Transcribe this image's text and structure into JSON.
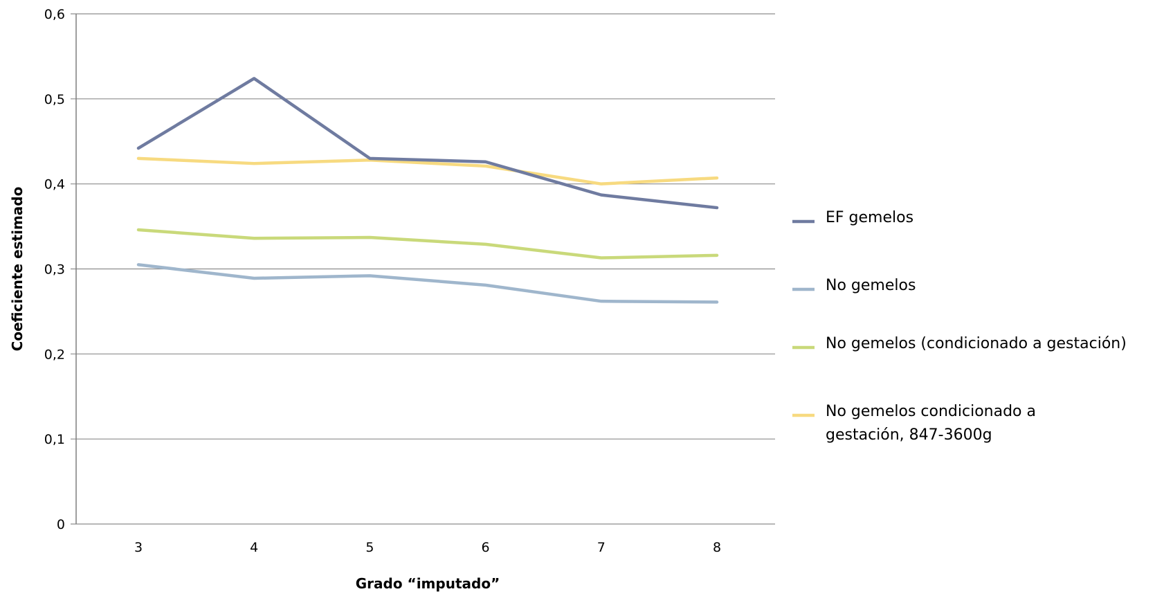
{
  "chart_data": {
    "type": "line",
    "title": "",
    "xlabel": "Grado “imputado”",
    "ylabel": "Coeficiente estimado",
    "x": [
      3,
      4,
      5,
      6,
      7,
      8
    ],
    "x_tick_labels": [
      "3",
      "4",
      "5",
      "6",
      "7",
      "8"
    ],
    "ylim": [
      0,
      0.6
    ],
    "y_ticks": [
      0,
      0.1,
      0.2,
      0.3,
      0.4,
      0.5,
      0.6
    ],
    "y_tick_labels": [
      "0",
      "0,1",
      "0,2",
      "0,3",
      "0,4",
      "0,5",
      "0,6"
    ],
    "grid": "horizontal",
    "legend_position": "right",
    "series": [
      {
        "name": "EF gemelos",
        "color": "#6f7ba0",
        "values": [
          0.442,
          0.524,
          0.43,
          0.426,
          0.387,
          0.372
        ]
      },
      {
        "name": "No gemelos",
        "color": "#9fb6cc",
        "values": [
          0.305,
          0.289,
          0.292,
          0.281,
          0.262,
          0.261
        ]
      },
      {
        "name": "No gemelos (condicionado a gestación)",
        "color": "#c9d97a",
        "values": [
          0.346,
          0.336,
          0.337,
          0.329,
          0.313,
          0.316
        ]
      },
      {
        "name": "No gemelos condicionado a gestación, 847-3600g",
        "color": "#f7da80",
        "values": [
          0.43,
          0.424,
          0.428,
          0.421,
          0.4,
          0.407
        ]
      }
    ]
  }
}
